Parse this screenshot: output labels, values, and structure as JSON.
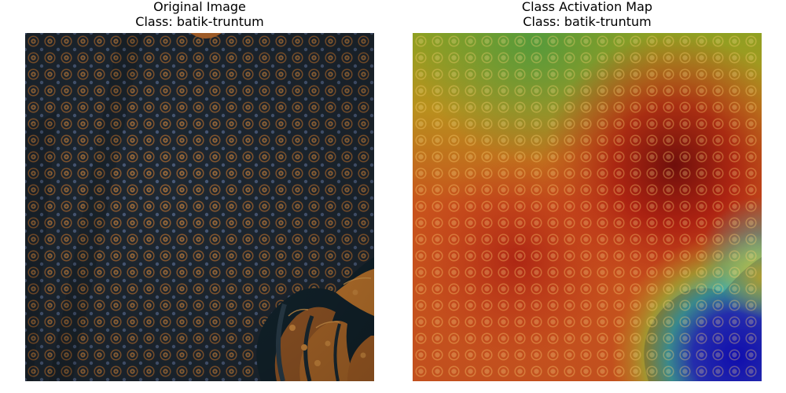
{
  "panels": [
    {
      "title": "Original Image",
      "class_label": "Class: batik-truntum"
    },
    {
      "title": "Class Activation Map",
      "class_label": "Class: batik-truntum"
    }
  ],
  "colors": {
    "fabric_base": "#1f2830",
    "motif_orange": "#a8662c",
    "motif_dark": "#2a2f3a",
    "cam_hot": "#7a0d0d",
    "cam_red": "#c0311b",
    "cam_yellow": "#b99a1e",
    "cam_green": "#5f9a3a",
    "cam_cyan": "#2fb6b9",
    "cam_blue": "#1612c9"
  }
}
